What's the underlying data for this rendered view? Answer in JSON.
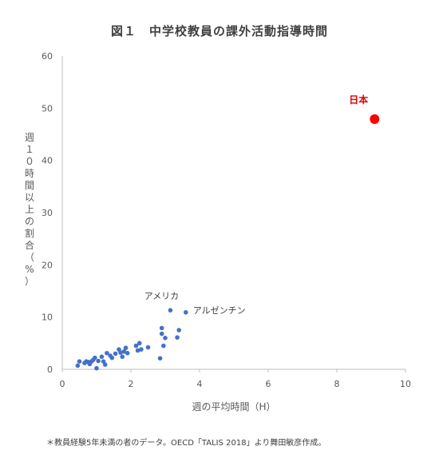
{
  "footnote": "＊教員経験5年未満の者のデータ。OECD「TALIS 2018」より舞田敏彦作成。",
  "chart_data": {
    "type": "scatter",
    "title": "図１　中学校教員の課外活動指導時間",
    "xlabel": "週の平均時間（H）",
    "ylabel": "週１０時間以上の割合（%）",
    "xlim": [
      0,
      10
    ],
    "ylim": [
      0,
      60
    ],
    "xticks": [
      "0",
      "2",
      "4",
      "6",
      "8",
      "10"
    ],
    "yticks": [
      "0",
      "10",
      "20",
      "30",
      "40",
      "50",
      "60"
    ],
    "grid": false,
    "colors": {
      "points": "#4472c4",
      "highlight": "#ff0000",
      "axis": "#bfbfbf",
      "text": "#595959"
    },
    "series": [
      {
        "points": [
          [
            0.45,
            0.7
          ],
          [
            0.5,
            1.5
          ],
          [
            0.65,
            1.2
          ],
          [
            0.7,
            1.5
          ],
          [
            0.75,
            1.4
          ],
          [
            0.8,
            1.0
          ],
          [
            0.85,
            1.5
          ],
          [
            0.9,
            1.8
          ],
          [
            0.95,
            2.2
          ],
          [
            1.0,
            0.2
          ],
          [
            1.05,
            1.6
          ],
          [
            1.15,
            2.4
          ],
          [
            1.2,
            1.5
          ],
          [
            1.25,
            0.9
          ],
          [
            1.3,
            3.1
          ],
          [
            1.4,
            2.6
          ],
          [
            1.45,
            2.2
          ],
          [
            1.55,
            3.0
          ],
          [
            1.65,
            3.8
          ],
          [
            1.7,
            3.2
          ],
          [
            1.75,
            2.4
          ],
          [
            1.8,
            3.4
          ],
          [
            1.85,
            4.1
          ],
          [
            1.9,
            3.1
          ],
          [
            2.15,
            4.5
          ],
          [
            2.2,
            3.6
          ],
          [
            2.25,
            5.0
          ],
          [
            2.3,
            3.8
          ],
          [
            2.5,
            4.2
          ],
          [
            2.85,
            2.1
          ],
          [
            2.9,
            6.8
          ],
          [
            2.95,
            4.5
          ],
          [
            3.0,
            6.0
          ],
          [
            2.9,
            7.9
          ],
          [
            3.35,
            6.1
          ],
          [
            3.4,
            7.5
          ]
        ]
      },
      {
        "points": [
          [
            3.15,
            11.3,
            "アメリカ"
          ],
          [
            3.6,
            10.9,
            "アルゼンチン"
          ]
        ]
      },
      {
        "points": [
          [
            9.1,
            47.9,
            "日本"
          ]
        ]
      }
    ]
  }
}
